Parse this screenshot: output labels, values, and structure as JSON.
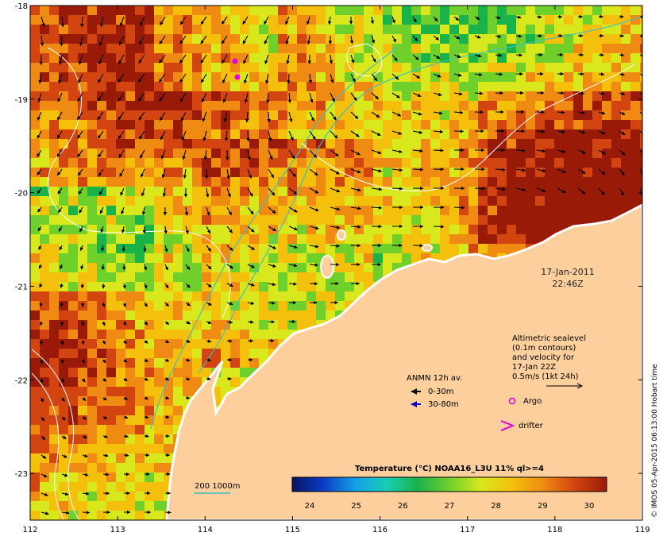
{
  "map": {
    "lon_ticks": [
      "112",
      "113",
      "114",
      "115",
      "116",
      "117",
      "118",
      "119"
    ],
    "lat_ticks": [
      "-18",
      "-19",
      "-20",
      "-21",
      "-22",
      "-23"
    ],
    "lon_range": [
      112,
      119
    ],
    "lat_range": [
      -23.5,
      -18
    ],
    "land_color": "#fccf9c",
    "palette": [
      "#08145f",
      "#0a3cc8",
      "#14a0e6",
      "#18cdb4",
      "#1ab34a",
      "#6fd02c",
      "#d8e81c",
      "#f4c00c",
      "#ef8a12",
      "#d24410",
      "#9a1a08"
    ]
  },
  "timestamp": {
    "date": "17-Jan-2011",
    "time": "22:46Z"
  },
  "altimetry_note": {
    "lines": [
      "Altimetric sealevel",
      "(0.1m contours)",
      "and velocity for",
      "17-Jan 22Z",
      "0.5m/s (1kt 24h)"
    ]
  },
  "legend": {
    "title": "ANMN 12h av.",
    "shallow": "0-30m",
    "deep": "30-80m",
    "argo": "Argo",
    "drifter": "drifter",
    "shallow_color": "#000000",
    "deep_color": "#0000cc",
    "marker_color": "#e000e0"
  },
  "bathymetry": {
    "label": "200  1000m",
    "color": "#40c0c0"
  },
  "colorbar": {
    "title": "Temperature (°C) NOAA16_L3U 11% ql>=4",
    "ticks": [
      "24",
      "25",
      "26",
      "27",
      "28",
      "29",
      "30"
    ]
  },
  "credit": "© IMOS 05-Apr-2015 06:13:00 Hobart time"
}
